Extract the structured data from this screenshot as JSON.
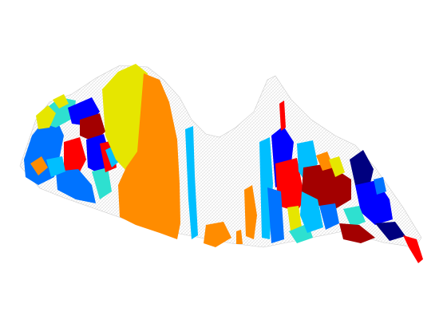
{
  "figure": {
    "kind": "3d-segmented-surface-render",
    "background": "#ffffff",
    "mesh_color": "#c8c8c8",
    "segment_palette": [
      "#00007f",
      "#0000ff",
      "#0073ff",
      "#00bfff",
      "#2ee0d0",
      "#e6e600",
      "#ff8c00",
      "#ff0000",
      "#a30000"
    ]
  }
}
